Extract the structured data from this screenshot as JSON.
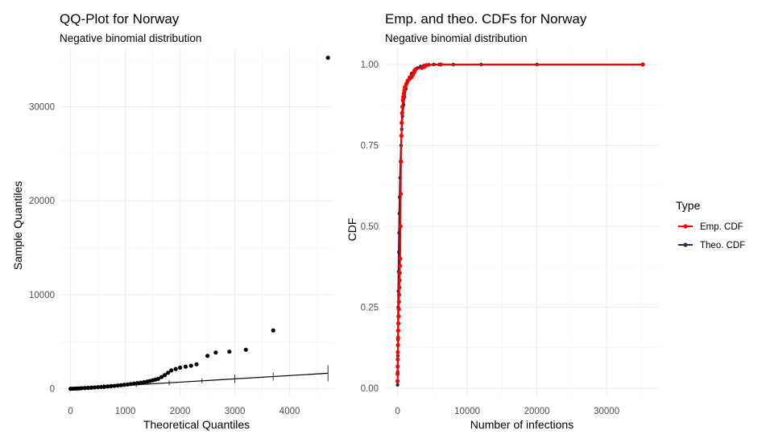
{
  "colors": {
    "qq_points": "#000000",
    "qq_line": "#000000",
    "emp_cdf": "#ff0000",
    "theo_cdf": "#262b4a",
    "grid": "#ebebeb"
  },
  "chart_data": [
    {
      "type": "scatter",
      "title": "QQ-Plot for Norway",
      "subtitle": "Negative binomial distribution",
      "xlabel": "Theoretical Quantiles",
      "ylabel": "Sample Quantiles",
      "xlim": [
        -200,
        4800
      ],
      "ylim": [
        -800,
        36200
      ],
      "xticks": [
        0,
        1000,
        2000,
        3000,
        4000
      ],
      "xtick_labels": [
        "0",
        "1000",
        "2000",
        "3000",
        "4000"
      ],
      "yticks": [
        0,
        10000,
        20000,
        30000
      ],
      "ytick_labels": [
        "0",
        "10000",
        "20000",
        "30000"
      ],
      "grid": true,
      "series": [
        {
          "kind": "points",
          "x": [
            0,
            40,
            80,
            120,
            160,
            200,
            260,
            320,
            380,
            440,
            500,
            560,
            620,
            680,
            740,
            800,
            860,
            920,
            980,
            1040,
            1100,
            1160,
            1220,
            1280,
            1340,
            1400,
            1450,
            1500,
            1550,
            1600,
            1660,
            1720,
            1780,
            1840,
            1920,
            2000,
            2100,
            2200,
            2300,
            2500,
            2650,
            2900,
            3200,
            3700,
            4700
          ],
          "y": [
            0,
            10,
            20,
            30,
            40,
            60,
            80,
            100,
            120,
            140,
            170,
            190,
            220,
            250,
            280,
            310,
            340,
            380,
            420,
            460,
            500,
            550,
            600,
            650,
            700,
            760,
            820,
            900,
            980,
            1050,
            1250,
            1450,
            1700,
            1950,
            2100,
            2250,
            2350,
            2450,
            2600,
            3500,
            3850,
            3950,
            4150,
            6200,
            35200
          ]
        },
        {
          "kind": "reference-line",
          "x": [
            0,
            4700
          ],
          "y": [
            0,
            1650
          ]
        }
      ],
      "line_ticks_x": [
        600,
        1200,
        1800,
        2400,
        3000,
        3700,
        4700
      ]
    },
    {
      "type": "line",
      "title": "Emp. and theo. CDFs for Norway",
      "subtitle": "Negative binomial distribution",
      "xlabel": "Number of infections",
      "ylabel": "CDF",
      "xlim": [
        -1800,
        37500
      ],
      "ylim": [
        -0.025,
        1.05
      ],
      "xticks": [
        0,
        10000,
        20000,
        30000
      ],
      "xtick_labels": [
        "0",
        "10000",
        "20000",
        "30000"
      ],
      "yticks": [
        0,
        0.25,
        0.5,
        0.75,
        1
      ],
      "ytick_labels": [
        "0.00",
        "0.25",
        "0.50",
        "0.75",
        "1.00"
      ],
      "grid": true,
      "legend": {
        "title": "Type",
        "placement": "right",
        "entries": [
          {
            "label": "Emp. CDF",
            "color": "#ff0000"
          },
          {
            "label": "Theo. CDF",
            "color": "#262b4a"
          }
        ]
      },
      "series": [
        {
          "name": "Theo. CDF",
          "x": [
            0,
            20,
            40,
            60,
            80,
            100,
            120,
            150,
            180,
            220,
            260,
            300,
            360,
            420,
            500,
            600,
            700,
            850,
            1000,
            1200,
            1400,
            1700,
            2000,
            2400,
            2800,
            3300,
            3800,
            4500,
            5200,
            6000,
            8000,
            12000,
            20000,
            35200
          ],
          "y": [
            0.01,
            0.05,
            0.1,
            0.15,
            0.2,
            0.25,
            0.3,
            0.36,
            0.42,
            0.48,
            0.54,
            0.59,
            0.65,
            0.7,
            0.75,
            0.8,
            0.84,
            0.875,
            0.9,
            0.925,
            0.945,
            0.96,
            0.972,
            0.982,
            0.989,
            0.994,
            0.997,
            0.999,
            1,
            1,
            1,
            1,
            1,
            1
          ]
        },
        {
          "name": "Emp. CDF",
          "x": [
            0,
            10,
            20,
            30,
            40,
            60,
            80,
            100,
            120,
            140,
            170,
            190,
            220,
            250,
            280,
            310,
            340,
            380,
            420,
            460,
            500,
            550,
            600,
            650,
            700,
            760,
            820,
            900,
            980,
            1050,
            1250,
            1450,
            1700,
            1950,
            2100,
            2250,
            2350,
            2450,
            2600,
            3500,
            3850,
            3950,
            4150,
            6200,
            35200
          ],
          "y": [
            0.022,
            0.044,
            0.067,
            0.089,
            0.111,
            0.133,
            0.156,
            0.178,
            0.2,
            0.222,
            0.244,
            0.267,
            0.289,
            0.311,
            0.333,
            0.356,
            0.378,
            0.4,
            0.5,
            0.6,
            0.7,
            0.78,
            0.82,
            0.85,
            0.87,
            0.89,
            0.9,
            0.91,
            0.92,
            0.93,
            0.94,
            0.95,
            0.955,
            0.96,
            0.965,
            0.97,
            0.975,
            0.98,
            0.985,
            0.99,
            0.993,
            0.995,
            0.998,
            1,
            1
          ]
        }
      ]
    }
  ]
}
